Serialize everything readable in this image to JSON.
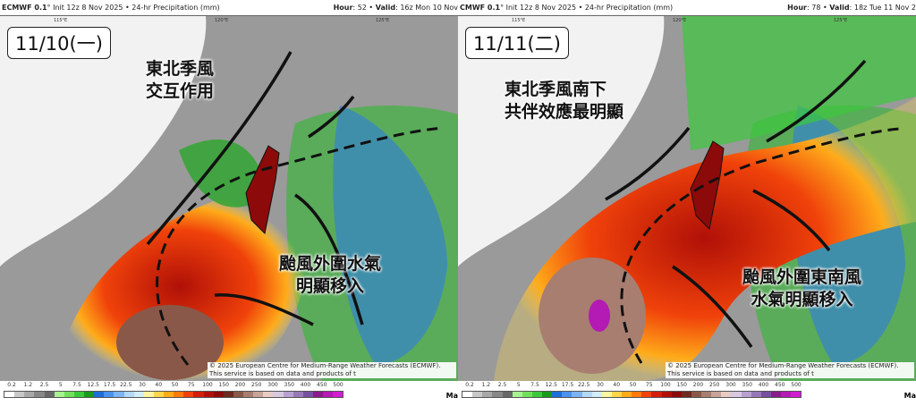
{
  "panels": [
    {
      "header_model": "ECMWF 0.1",
      "header_unit": "°",
      "header_info": "Init 12z 8 Nov 2025 • 24-hr Precipitation (mm)",
      "hour_label": "Hour",
      "hour": "52",
      "valid_label": "Valid",
      "valid": "16z Mon 10 Nov",
      "date_label": "11/10(一)",
      "note1": [
        "東北季風",
        "交互作用"
      ],
      "note2": [
        "颱風外圍水氣",
        "明顯移入"
      ],
      "lon_labels": [
        "115°E",
        "120°E",
        "125°E"
      ]
    },
    {
      "header_model": "CMWF 0.1",
      "header_unit": "°",
      "header_info": "Init 12z 8 Nov 2025 • 24-hr Precipitation (mm)",
      "hour_label": "Hour",
      "hour": "78",
      "valid_label": "Valid",
      "valid": "18z Tue 11 Nov 2",
      "date_label": "11/11(二)",
      "note1": [
        "東北季風南下",
        "共伴效應最明顯"
      ],
      "note2": [
        "颱風外圍東南風",
        "水氣明顯移入"
      ],
      "lon_labels": [
        "115°E",
        "120°E",
        "125°E"
      ]
    }
  ],
  "copyright": "© 2025 European Centre for Medium-Range Weather Forecasts (ECMWF). This service is based on data and products of t",
  "legend": {
    "ticks": [
      "0.2",
      "1.2",
      "2.5",
      "5",
      "7.5",
      "12.5",
      "17.5",
      "22.5",
      "30",
      "40",
      "50",
      "75",
      "100",
      "150",
      "200",
      "250",
      "300",
      "350",
      "400",
      "450",
      "500"
    ],
    "colors": [
      "#ffffff",
      "#c8c8c8",
      "#a8a8a8",
      "#888888",
      "#686868",
      "#a6f28f",
      "#72e05c",
      "#3cc83c",
      "#1a9a1a",
      "#1f6ed8",
      "#4a92ee",
      "#7cb4f4",
      "#b4d8f8",
      "#d2ecf8",
      "#fff5a0",
      "#ffd64a",
      "#ffab1a",
      "#ff7a0a",
      "#f0420a",
      "#d21e0a",
      "#b01008",
      "#8c0a0a",
      "#6e2a1e",
      "#8a5848",
      "#a87e70",
      "#c8a498",
      "#e6ccc4",
      "#d8c8e0",
      "#b8a0d0",
      "#9878b8",
      "#7850a0",
      "#8c1a8c",
      "#b41ab4",
      "#d01ed0"
    ],
    "max_label": "Ma"
  },
  "colors": {
    "heavy_rain": "#d21e0a",
    "land": "#f4f4f4",
    "sea_dry": "#8a8a8a"
  }
}
